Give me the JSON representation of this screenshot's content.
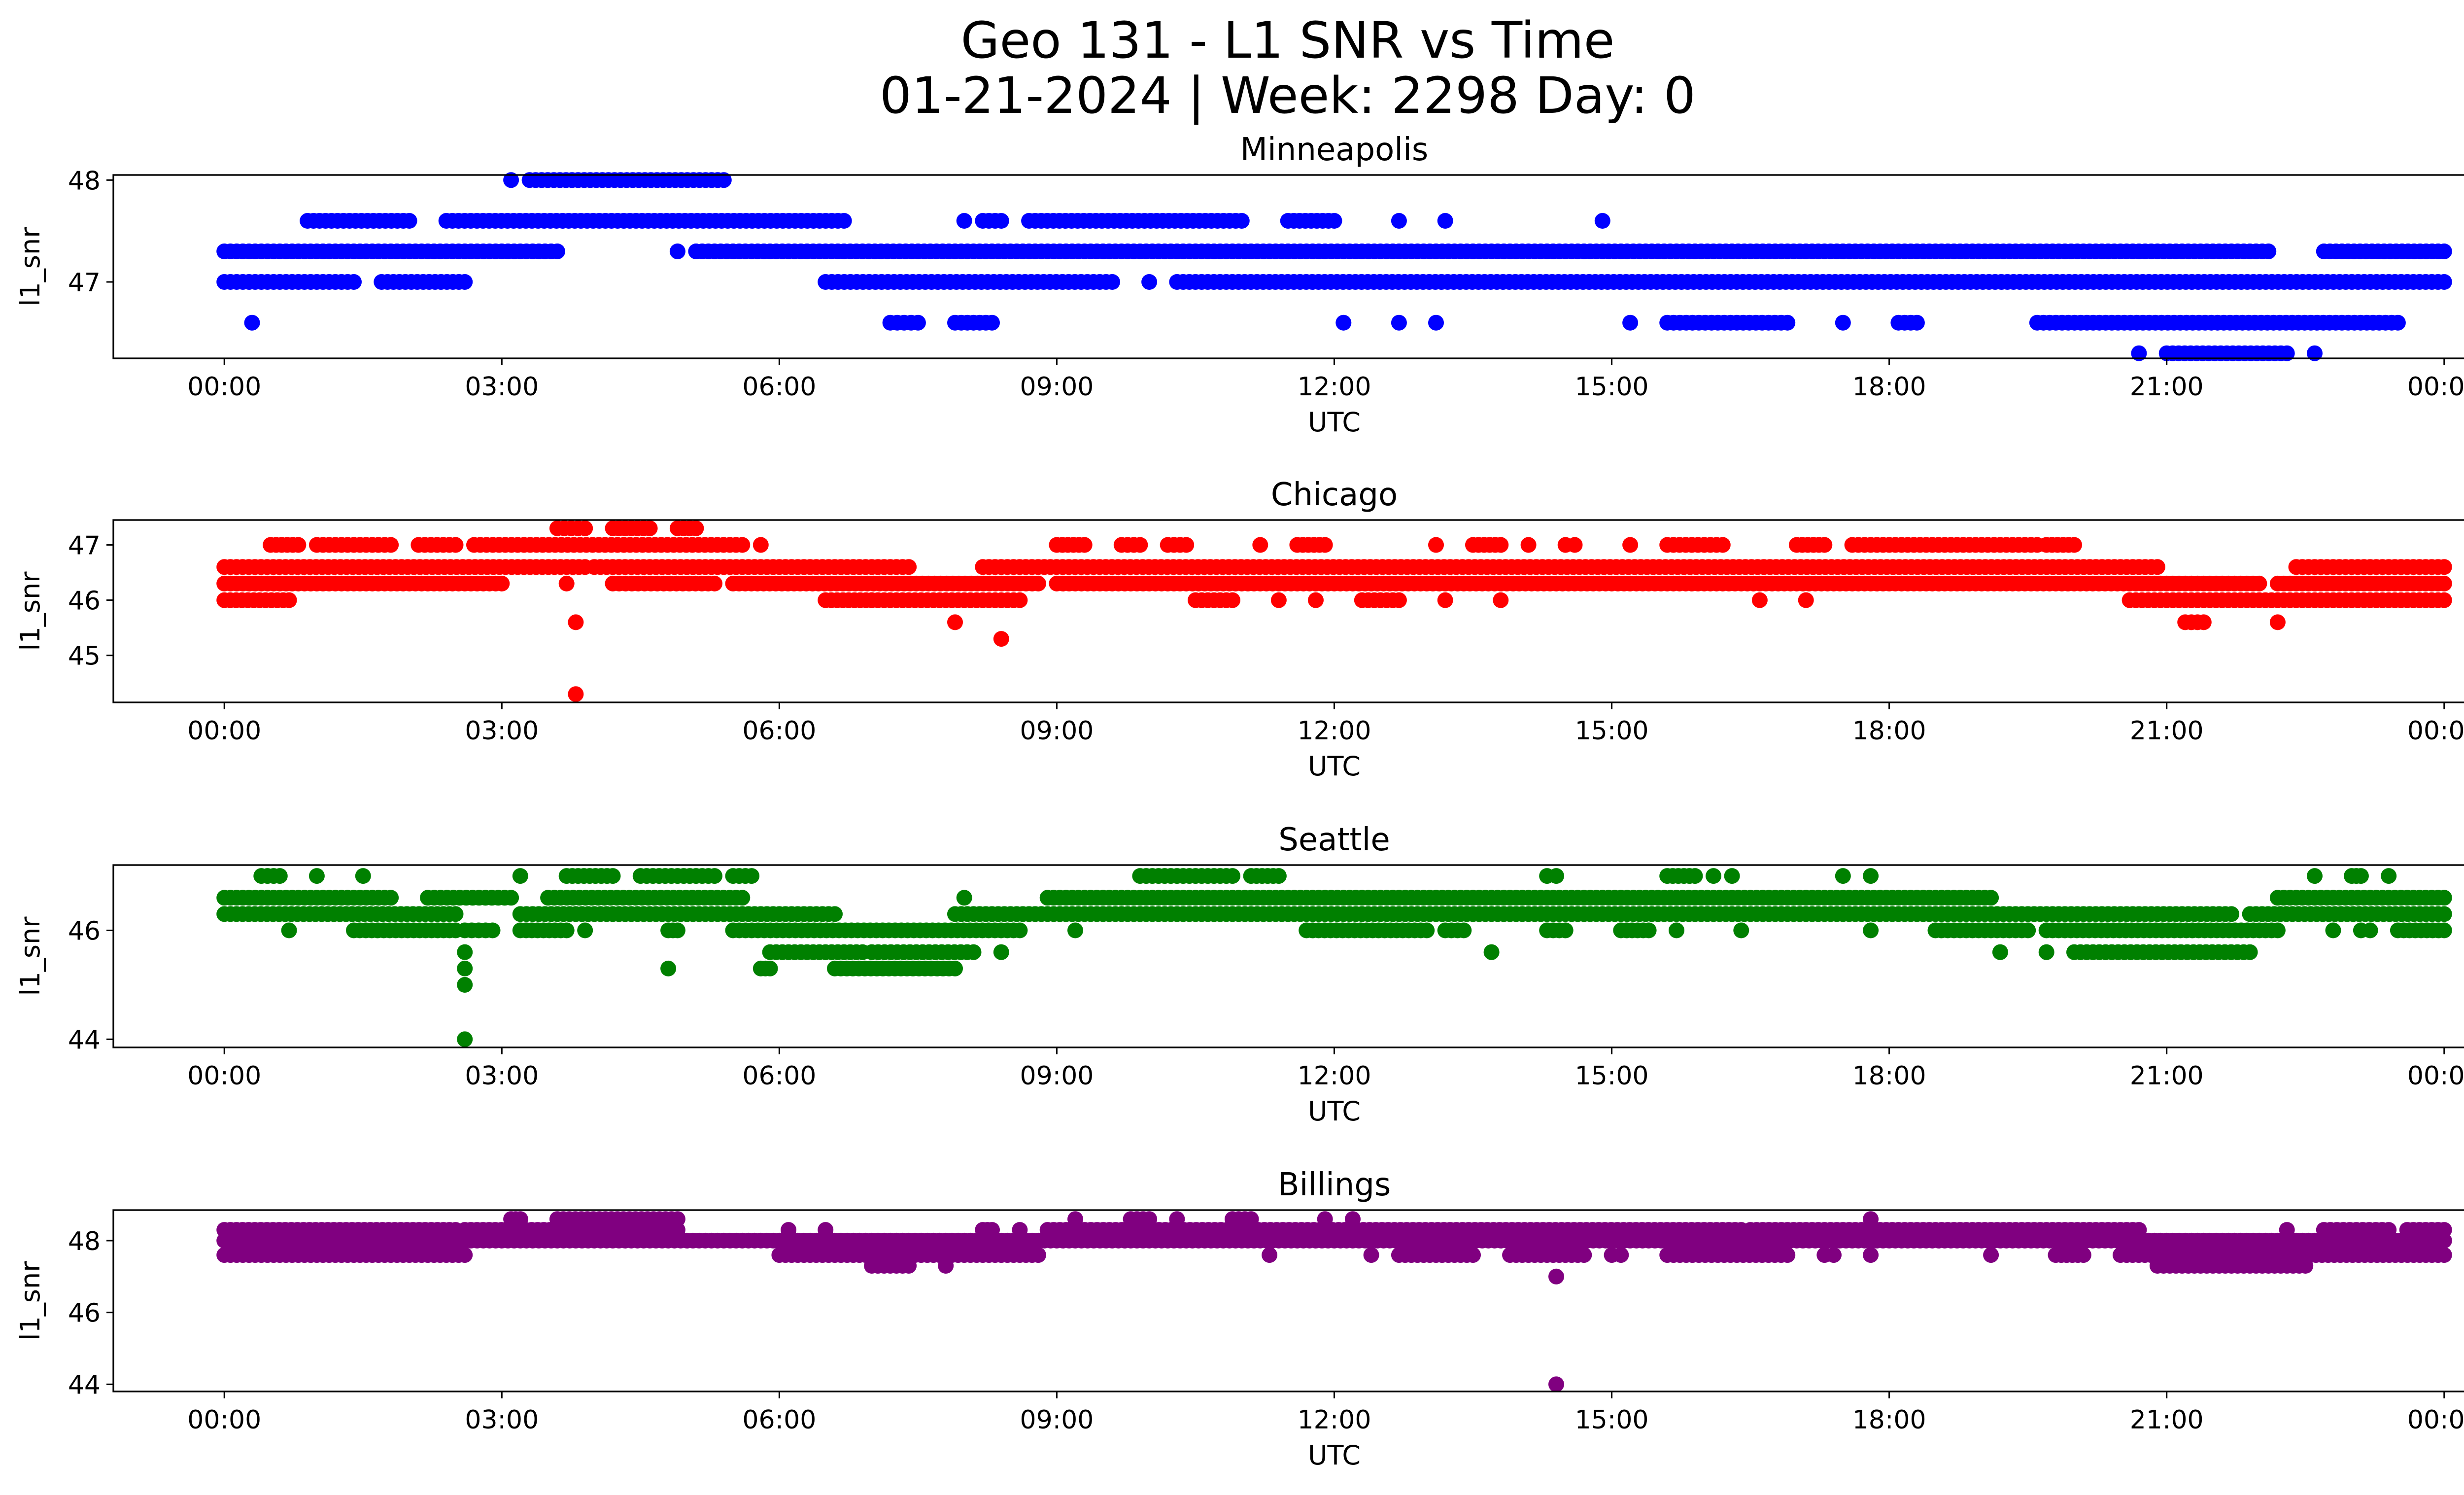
{
  "figure": {
    "title_line1": "Geo 131 - L1 SNR vs Time",
    "title_line2": "01-21-2024 | Week: 2298 Day: 0"
  },
  "chart_data": [
    {
      "type": "scatter",
      "title": "Minneapolis",
      "xlabel": "UTC",
      "ylabel": "l1_snr",
      "color": "#0000ff",
      "x_ticks": [
        "00:00",
        "03:00",
        "06:00",
        "09:00",
        "12:00",
        "15:00",
        "18:00",
        "21:00",
        "00:00"
      ],
      "y_ticks": [
        47,
        48
      ],
      "ylim": [
        46.25,
        48.05
      ],
      "xlim_hours": [
        -1.2,
        25.2
      ],
      "runs": [
        {
          "y": 47.3,
          "segments": [
            [
              0.0,
              3.6
            ],
            [
              4.9,
              4.9
            ],
            [
              5.1,
              22.1
            ],
            [
              22.7,
              24.0
            ]
          ]
        },
        {
          "y": 47.0,
          "segments": [
            [
              0.0,
              1.4
            ],
            [
              1.7,
              2.6
            ],
            [
              6.5,
              9.6
            ],
            [
              10.0,
              10.0
            ],
            [
              10.3,
              24.0
            ]
          ]
        },
        {
          "y": 47.6,
          "segments": [
            [
              0.9,
              2.0
            ],
            [
              2.4,
              6.7
            ],
            [
              8.0,
              8.0
            ],
            [
              8.2,
              8.4
            ],
            [
              8.7,
              11.0
            ],
            [
              11.5,
              12.0
            ],
            [
              12.7,
              12.7
            ],
            [
              13.2,
              13.2
            ],
            [
              14.9,
              14.9
            ]
          ]
        },
        {
          "y": 48.0,
          "segments": [
            [
              3.1,
              3.1
            ],
            [
              3.3,
              5.4
            ]
          ]
        },
        {
          "y": 46.6,
          "segments": [
            [
              0.3,
              0.3
            ],
            [
              7.2,
              7.5
            ],
            [
              7.9,
              8.3
            ],
            [
              12.1,
              12.1
            ],
            [
              12.7,
              12.7
            ],
            [
              13.1,
              13.1
            ],
            [
              15.2,
              15.2
            ],
            [
              15.6,
              16.9
            ],
            [
              17.5,
              17.5
            ],
            [
              18.1,
              18.3
            ],
            [
              19.6,
              23.5
            ]
          ]
        },
        {
          "y": 46.3,
          "segments": [
            [
              20.7,
              20.7
            ],
            [
              21.0,
              22.3
            ],
            [
              22.6,
              22.6
            ]
          ]
        }
      ]
    },
    {
      "type": "scatter",
      "title": "Chicago",
      "xlabel": "UTC",
      "ylabel": "l1_snr",
      "color": "#ff0000",
      "x_ticks": [
        "00:00",
        "03:00",
        "06:00",
        "09:00",
        "12:00",
        "15:00",
        "18:00",
        "21:00",
        "00:00"
      ],
      "y_ticks": [
        45,
        46,
        47
      ],
      "ylim": [
        44.15,
        47.45
      ],
      "xlim_hours": [
        -1.2,
        25.2
      ],
      "runs": [
        {
          "y": 46.6,
          "segments": [
            [
              0.0,
              3.9
            ],
            [
              4.0,
              7.4
            ],
            [
              8.2,
              20.9
            ],
            [
              22.4,
              24.0
            ]
          ]
        },
        {
          "y": 46.3,
          "segments": [
            [
              0.0,
              3.0
            ],
            [
              3.7,
              3.7
            ],
            [
              4.2,
              5.3
            ],
            [
              5.5,
              8.8
            ],
            [
              9.0,
              22.0
            ],
            [
              22.2,
              24.0
            ]
          ]
        },
        {
          "y": 47.0,
          "segments": [
            [
              0.5,
              0.8
            ],
            [
              1.0,
              1.8
            ],
            [
              2.1,
              2.5
            ],
            [
              2.7,
              5.6
            ],
            [
              5.8,
              5.8
            ],
            [
              9.0,
              9.3
            ],
            [
              9.7,
              9.9
            ],
            [
              10.2,
              10.4
            ],
            [
              11.2,
              11.2
            ],
            [
              11.6,
              11.9
            ],
            [
              13.1,
              13.1
            ],
            [
              13.5,
              13.8
            ],
            [
              14.1,
              14.1
            ],
            [
              14.5,
              14.6
            ],
            [
              15.2,
              15.2
            ],
            [
              15.6,
              16.2
            ],
            [
              17.0,
              17.3
            ],
            [
              17.6,
              19.6
            ],
            [
              19.7,
              20.0
            ]
          ]
        },
        {
          "y": 46.0,
          "segments": [
            [
              0.0,
              0.7
            ],
            [
              6.5,
              7.0
            ],
            [
              7.0,
              8.6
            ],
            [
              10.5,
              10.9
            ],
            [
              11.4,
              11.4
            ],
            [
              11.8,
              11.8
            ],
            [
              12.3,
              12.7
            ],
            [
              13.2,
              13.2
            ],
            [
              13.8,
              13.8
            ],
            [
              16.6,
              16.6
            ],
            [
              17.1,
              17.1
            ],
            [
              20.6,
              24.0
            ]
          ]
        },
        {
          "y": 47.3,
          "segments": [
            [
              3.6,
              3.9
            ],
            [
              4.2,
              4.6
            ],
            [
              4.9,
              5.1
            ]
          ]
        },
        {
          "y": 45.6,
          "segments": [
            [
              3.8,
              3.8
            ],
            [
              7.9,
              7.9
            ],
            [
              21.2,
              21.4
            ],
            [
              22.2,
              22.2
            ]
          ]
        },
        {
          "y": 45.3,
          "segments": [
            [
              8.4,
              8.4
            ]
          ]
        },
        {
          "y": 44.3,
          "segments": [
            [
              3.8,
              3.8
            ]
          ]
        }
      ]
    },
    {
      "type": "scatter",
      "title": "Seattle",
      "xlabel": "UTC",
      "ylabel": "l1_snr",
      "color": "#008000",
      "x_ticks": [
        "00:00",
        "03:00",
        "06:00",
        "09:00",
        "12:00",
        "15:00",
        "18:00",
        "21:00",
        "00:00"
      ],
      "y_ticks": [
        44,
        46
      ],
      "ylim": [
        43.85,
        47.2
      ],
      "xlim_hours": [
        -1.2,
        25.2
      ],
      "runs": [
        {
          "y": 46.6,
          "segments": [
            [
              0.0,
              1.8
            ],
            [
              2.2,
              3.1
            ],
            [
              3.5,
              5.6
            ],
            [
              8.0,
              8.0
            ],
            [
              8.9,
              19.1
            ],
            [
              22.2,
              24.0
            ]
          ]
        },
        {
          "y": 46.3,
          "segments": [
            [
              0.0,
              2.5
            ],
            [
              3.2,
              6.6
            ],
            [
              7.9,
              21.7
            ],
            [
              21.9,
              24.0
            ]
          ]
        },
        {
          "y": 46.0,
          "segments": [
            [
              0.7,
              0.7
            ],
            [
              1.4,
              2.5
            ],
            [
              2.6,
              2.9
            ],
            [
              3.2,
              3.7
            ],
            [
              3.9,
              3.9
            ],
            [
              4.8,
              4.9
            ],
            [
              5.5,
              8.6
            ],
            [
              9.2,
              9.2
            ],
            [
              11.7,
              13.0
            ],
            [
              13.2,
              13.4
            ],
            [
              14.3,
              14.5
            ],
            [
              15.1,
              15.4
            ],
            [
              15.7,
              15.7
            ],
            [
              16.4,
              16.4
            ],
            [
              17.8,
              17.8
            ],
            [
              18.5,
              19.5
            ],
            [
              19.7,
              22.2
            ],
            [
              22.8,
              22.8
            ],
            [
              23.1,
              23.2
            ],
            [
              23.5,
              24.0
            ]
          ]
        },
        {
          "y": 47.0,
          "segments": [
            [
              0.4,
              0.6
            ],
            [
              1.0,
              1.0
            ],
            [
              1.5,
              1.5
            ],
            [
              3.2,
              3.2
            ],
            [
              3.7,
              4.2
            ],
            [
              4.5,
              5.3
            ],
            [
              5.5,
              5.7
            ],
            [
              9.9,
              10.9
            ],
            [
              11.1,
              11.4
            ],
            [
              14.3,
              14.4
            ],
            [
              15.6,
              15.9
            ],
            [
              16.1,
              16.1
            ],
            [
              16.3,
              16.3
            ],
            [
              17.5,
              17.5
            ],
            [
              17.8,
              17.8
            ],
            [
              22.6,
              22.6
            ],
            [
              23.0,
              23.1
            ],
            [
              23.4,
              23.4
            ]
          ]
        },
        {
          "y": 45.6,
          "segments": [
            [
              2.6,
              2.6
            ],
            [
              5.9,
              6.9
            ],
            [
              7.0,
              8.1
            ],
            [
              8.4,
              8.4
            ],
            [
              13.7,
              13.7
            ],
            [
              19.2,
              19.2
            ],
            [
              19.7,
              19.7
            ],
            [
              20.0,
              21.9
            ]
          ]
        },
        {
          "y": 45.3,
          "segments": [
            [
              2.6,
              2.6
            ],
            [
              4.8,
              4.8
            ],
            [
              5.8,
              5.9
            ],
            [
              6.6,
              7.9
            ]
          ]
        },
        {
          "y": 45.0,
          "segments": [
            [
              2.6,
              2.6
            ]
          ]
        },
        {
          "y": 44.0,
          "segments": [
            [
              2.6,
              2.6
            ]
          ]
        }
      ]
    },
    {
      "type": "scatter",
      "title": "Billings",
      "xlabel": "UTC",
      "ylabel": "l1_snr",
      "color": "#800080",
      "x_ticks": [
        "00:00",
        "03:00",
        "06:00",
        "09:00",
        "12:00",
        "15:00",
        "18:00",
        "21:00",
        "00:00"
      ],
      "y_ticks": [
        44,
        46,
        48
      ],
      "ylim": [
        43.8,
        48.85
      ],
      "xlim_hours": [
        -1.2,
        25.2
      ],
      "runs": [
        {
          "y": 48.0,
          "segments": [
            [
              0.0,
              24.0
            ]
          ]
        },
        {
          "y": 48.3,
          "segments": [
            [
              0.0,
              2.5
            ],
            [
              2.6,
              4.9
            ],
            [
              6.1,
              6.1
            ],
            [
              6.5,
              6.5
            ],
            [
              8.2,
              8.3
            ],
            [
              8.6,
              8.6
            ],
            [
              8.9,
              16.4
            ],
            [
              16.5,
              20.7
            ],
            [
              22.3,
              22.3
            ],
            [
              22.7,
              23.4
            ],
            [
              23.6,
              24.0
            ]
          ]
        },
        {
          "y": 47.6,
          "segments": [
            [
              0.0,
              2.6
            ],
            [
              6.0,
              8.8
            ],
            [
              11.3,
              11.3
            ],
            [
              12.4,
              12.4
            ],
            [
              12.7,
              13.5
            ],
            [
              13.9,
              14.7
            ],
            [
              15.0,
              15.1
            ],
            [
              15.6,
              16.9
            ],
            [
              17.3,
              17.4
            ],
            [
              17.8,
              17.8
            ],
            [
              19.1,
              19.1
            ],
            [
              19.8,
              20.1
            ],
            [
              20.5,
              24.0
            ]
          ]
        },
        {
          "y": 48.6,
          "segments": [
            [
              3.1,
              3.2
            ],
            [
              3.6,
              4.9
            ],
            [
              9.2,
              9.2
            ],
            [
              9.8,
              10.0
            ],
            [
              10.3,
              10.3
            ],
            [
              10.9,
              11.1
            ],
            [
              11.9,
              11.9
            ],
            [
              12.2,
              12.2
            ],
            [
              17.8,
              17.8
            ]
          ]
        },
        {
          "y": 47.3,
          "segments": [
            [
              7.0,
              7.4
            ],
            [
              7.8,
              7.8
            ],
            [
              20.9,
              22.5
            ]
          ]
        },
        {
          "y": 47.0,
          "segments": [
            [
              14.4,
              14.4
            ]
          ]
        },
        {
          "y": 44.0,
          "segments": [
            [
              14.4,
              14.4
            ]
          ]
        }
      ]
    }
  ]
}
